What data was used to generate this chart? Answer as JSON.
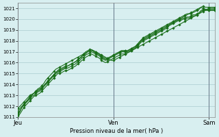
{
  "xlabel": "Pression niveau de la mer( hPa )",
  "ylim": [
    1011,
    1021.5
  ],
  "yticks": [
    1011,
    1012,
    1013,
    1014,
    1015,
    1016,
    1017,
    1018,
    1019,
    1020,
    1021
  ],
  "bg_color": "#d8eff0",
  "grid_color": "#aaccd0",
  "line_color": "#1a6e1a",
  "marker_color": "#1a6e1a",
  "day_labels": [
    "Jeu",
    "Ven",
    "Sam"
  ],
  "day_positions": [
    0,
    48,
    96
  ],
  "n_points": 100,
  "line1_y": [
    1011.2,
    1011.5,
    1011.9,
    1012.1,
    1012.4,
    1012.6,
    1012.9,
    1013.0,
    1013.2,
    1013.4,
    1013.6,
    1013.7,
    1013.9,
    1014.1,
    1014.4,
    1014.6,
    1014.8,
    1015.0,
    1015.2,
    1015.4,
    1015.5,
    1015.6,
    1015.7,
    1015.8,
    1015.9,
    1016.0,
    1016.1,
    1016.2,
    1016.3,
    1016.4,
    1016.5,
    1016.6,
    1016.7,
    1016.8,
    1016.9,
    1017.0,
    1017.1,
    1017.1,
    1017.1,
    1017.0,
    1016.9,
    1016.8,
    1016.7,
    1016.6,
    1016.5,
    1016.4,
    1016.3,
    1016.2,
    1016.2,
    1016.3,
    1016.4,
    1016.5,
    1016.6,
    1016.7,
    1016.8,
    1016.9,
    1017.0,
    1017.1,
    1017.2,
    1017.3,
    1017.4,
    1017.5,
    1017.6,
    1017.7,
    1017.8,
    1017.9,
    1018.0,
    1018.1,
    1018.2,
    1018.3,
    1018.4,
    1018.5,
    1018.6,
    1018.7,
    1018.8,
    1018.9,
    1019.0,
    1019.1,
    1019.2,
    1019.3,
    1019.4,
    1019.5,
    1019.6,
    1019.7,
    1019.8,
    1019.9,
    1020.0,
    1020.1,
    1020.2,
    1020.3,
    1020.4,
    1020.5,
    1020.6,
    1020.7,
    1020.8,
    1020.9,
    1021.0,
    1021.0,
    1021.0,
    1021.0
  ],
  "line2_y": [
    1011.5,
    1011.8,
    1012.0,
    1012.2,
    1012.4,
    1012.6,
    1012.8,
    1013.0,
    1013.2,
    1013.3,
    1013.5,
    1013.6,
    1013.7,
    1013.9,
    1014.1,
    1014.3,
    1014.5,
    1014.7,
    1014.9,
    1015.1,
    1015.2,
    1015.3,
    1015.4,
    1015.5,
    1015.6,
    1015.7,
    1015.8,
    1015.9,
    1016.0,
    1016.1,
    1016.3,
    1016.4,
    1016.6,
    1016.8,
    1017.0,
    1017.1,
    1017.2,
    1017.2,
    1017.1,
    1017.0,
    1016.9,
    1016.8,
    1016.6,
    1016.5,
    1016.4,
    1016.4,
    1016.5,
    1016.6,
    1016.7,
    1016.8,
    1016.9,
    1017.0,
    1017.1,
    1017.1,
    1017.1,
    1017.1,
    1017.2,
    1017.3,
    1017.4,
    1017.5,
    1017.7,
    1017.9,
    1018.1,
    1018.2,
    1018.3,
    1018.4,
    1018.5,
    1018.6,
    1018.7,
    1018.8,
    1018.9,
    1019.0,
    1019.1,
    1019.2,
    1019.3,
    1019.4,
    1019.5,
    1019.6,
    1019.7,
    1019.8,
    1019.9,
    1020.0,
    1020.1,
    1020.2,
    1020.3,
    1020.4,
    1020.5,
    1020.6,
    1020.7,
    1020.8,
    1020.9,
    1021.0,
    1021.1,
    1021.0,
    1020.9,
    1020.9,
    1020.8,
    1020.8,
    1020.8,
    1020.8
  ],
  "line3_y": [
    1011.8,
    1012.0,
    1012.2,
    1012.4,
    1012.6,
    1012.8,
    1013.0,
    1013.1,
    1013.2,
    1013.3,
    1013.4,
    1013.5,
    1013.7,
    1013.9,
    1014.1,
    1014.3,
    1014.5,
    1014.7,
    1014.9,
    1015.1,
    1015.3,
    1015.4,
    1015.5,
    1015.6,
    1015.7,
    1015.7,
    1015.8,
    1015.9,
    1016.0,
    1016.1,
    1016.2,
    1016.4,
    1016.5,
    1016.7,
    1016.8,
    1017.0,
    1017.1,
    1017.2,
    1017.0,
    1016.9,
    1016.8,
    1016.7,
    1016.5,
    1016.4,
    1016.3,
    1016.4,
    1016.5,
    1016.6,
    1016.7,
    1016.8,
    1016.9,
    1017.0,
    1017.1,
    1017.1,
    1017.1,
    1017.1,
    1017.2,
    1017.3,
    1017.4,
    1017.5,
    1017.7,
    1017.9,
    1018.1,
    1018.3,
    1018.4,
    1018.5,
    1018.6,
    1018.7,
    1018.8,
    1018.9,
    1019.0,
    1019.1,
    1019.2,
    1019.3,
    1019.4,
    1019.5,
    1019.6,
    1019.7,
    1019.8,
    1019.9,
    1020.0,
    1020.1,
    1020.2,
    1020.3,
    1020.4,
    1020.5,
    1020.5,
    1020.5,
    1020.6,
    1020.7,
    1020.8,
    1020.9,
    1021.1,
    1021.2,
    1021.1,
    1021.1,
    1021.1,
    1021.1,
    1021.1,
    1021.1
  ],
  "line4_y": [
    1011.3,
    1011.6,
    1011.9,
    1012.1,
    1012.3,
    1012.5,
    1012.7,
    1012.9,
    1013.0,
    1013.2,
    1013.3,
    1013.4,
    1013.6,
    1013.8,
    1014.0,
    1014.2,
    1014.4,
    1014.6,
    1014.8,
    1015.0,
    1015.1,
    1015.2,
    1015.3,
    1015.4,
    1015.5,
    1015.5,
    1015.6,
    1015.7,
    1015.8,
    1015.9,
    1016.1,
    1016.2,
    1016.4,
    1016.5,
    1016.7,
    1016.8,
    1016.9,
    1017.0,
    1016.9,
    1016.8,
    1016.7,
    1016.6,
    1016.4,
    1016.3,
    1016.2,
    1016.3,
    1016.4,
    1016.5,
    1016.6,
    1016.7,
    1016.8,
    1016.9,
    1017.0,
    1017.0,
    1017.0,
    1017.0,
    1017.1,
    1017.2,
    1017.3,
    1017.4,
    1017.6,
    1017.8,
    1018.0,
    1018.1,
    1018.2,
    1018.3,
    1018.4,
    1018.5,
    1018.6,
    1018.7,
    1018.8,
    1018.9,
    1019.0,
    1019.1,
    1019.2,
    1019.3,
    1019.5,
    1019.6,
    1019.7,
    1019.8,
    1019.9,
    1020.0,
    1020.0,
    1020.1,
    1020.1,
    1020.2,
    1020.2,
    1020.3,
    1020.4,
    1020.4,
    1020.5,
    1020.6,
    1020.8,
    1020.9,
    1020.9,
    1020.9,
    1020.9,
    1020.9,
    1020.9,
    1020.9
  ],
  "line5_y": [
    1011.1,
    1011.3,
    1011.6,
    1011.9,
    1012.1,
    1012.3,
    1012.5,
    1012.7,
    1012.9,
    1013.0,
    1013.1,
    1013.2,
    1013.4,
    1013.6,
    1013.8,
    1014.0,
    1014.2,
    1014.4,
    1014.6,
    1014.8,
    1015.0,
    1015.0,
    1015.1,
    1015.2,
    1015.3,
    1015.3,
    1015.4,
    1015.5,
    1015.6,
    1015.7,
    1015.9,
    1016.0,
    1016.2,
    1016.3,
    1016.5,
    1016.6,
    1016.7,
    1016.8,
    1016.7,
    1016.6,
    1016.5,
    1016.4,
    1016.2,
    1016.1,
    1016.0,
    1016.1,
    1016.2,
    1016.3,
    1016.4,
    1016.5,
    1016.6,
    1016.7,
    1016.8,
    1016.8,
    1016.8,
    1016.9,
    1017.0,
    1017.1,
    1017.2,
    1017.3,
    1017.5,
    1017.7,
    1017.9,
    1018.0,
    1018.1,
    1018.2,
    1018.3,
    1018.4,
    1018.5,
    1018.6,
    1018.7,
    1018.8,
    1018.9,
    1019.0,
    1019.1,
    1019.2,
    1019.4,
    1019.5,
    1019.6,
    1019.7,
    1019.8,
    1019.9,
    1019.9,
    1020.0,
    1020.0,
    1020.1,
    1020.1,
    1020.2,
    1020.3,
    1020.3,
    1020.4,
    1020.5,
    1020.7,
    1020.8,
    1020.8,
    1020.8,
    1020.8,
    1020.8,
    1020.8,
    1020.8
  ]
}
